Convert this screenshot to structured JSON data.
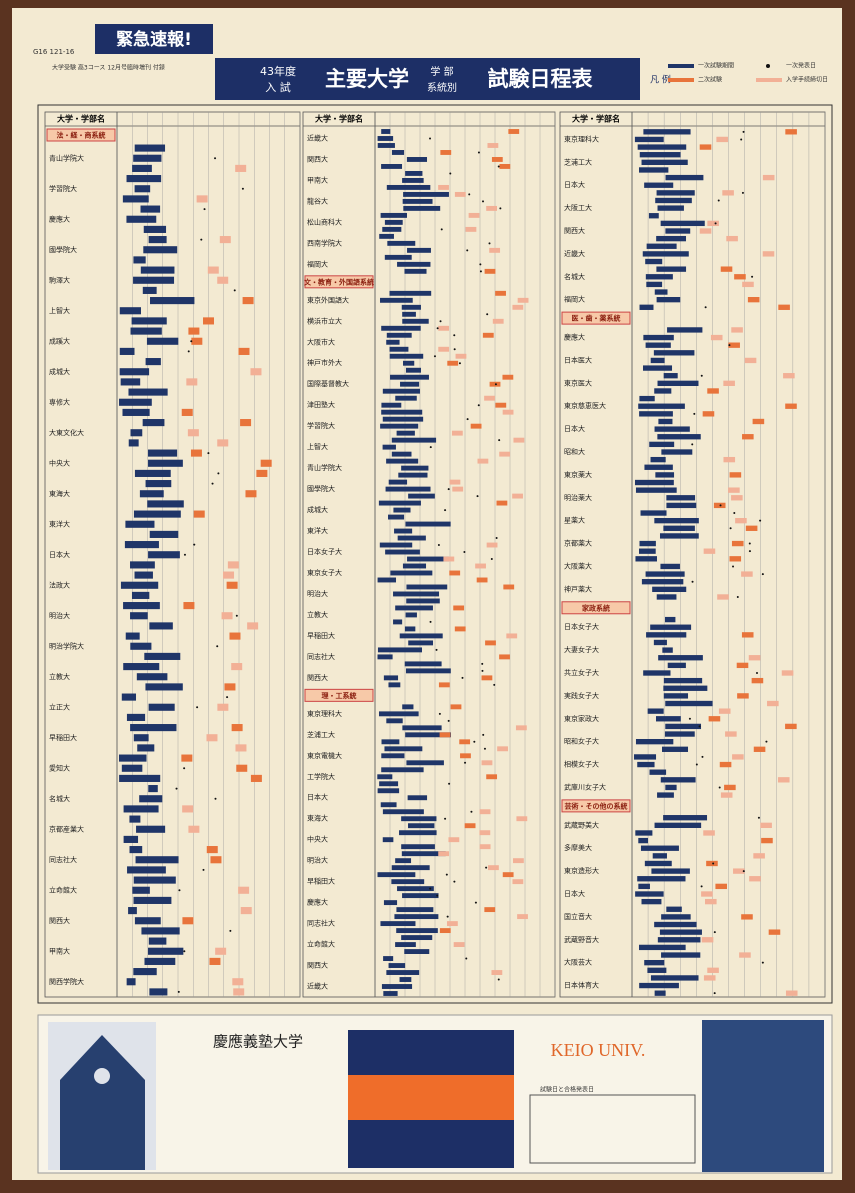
{
  "header": {
    "code": "G16 121-16",
    "banner": "緊急速報!",
    "note": "大学受験 高3コース 12月号臨時増刊 付録",
    "title_year": "43年度",
    "title_exam": "入 試",
    "title_main": "主要大学",
    "title_sub1": "学 部",
    "title_sub2": "系統別",
    "title_end": "試験日程表"
  },
  "legend": {
    "title": "凡 例",
    "items": [
      "一次試験期間",
      "一次発表日",
      "二次試験",
      "入学手続締切日"
    ]
  },
  "columns": [
    {
      "header": "大学・学部名",
      "sections": [
        {
          "title": "法・経・商系統",
          "rows": [
            "青山学院大",
            "学習院大",
            "慶應大",
            "國學院大",
            "駒澤大",
            "上智大",
            "成蹊大",
            "成城大",
            "専修大",
            "大東文化大",
            "中央大",
            "東海大",
            "東洋大",
            "日本大",
            "法政大",
            "明治大",
            "明治学院大",
            "立教大",
            "立正大",
            "早稲田大",
            "愛知大",
            "名城大",
            "京都産業大",
            "同志社大",
            "立命館大",
            "関西大",
            "甲南大",
            "関西学院大"
          ]
        }
      ]
    },
    {
      "header": "大学・学部名",
      "sections": [
        {
          "rows": [
            "近畿大",
            "関西大",
            "甲南大",
            "龍谷大",
            "松山商科大",
            "西南学院大",
            "福岡大"
          ]
        },
        {
          "title": "文・教育・外国語系統",
          "rows": [
            "東京外国語大",
            "横浜市立大",
            "大阪市大",
            "神戸市外大",
            "国際基督教大",
            "津田塾大",
            "学習院大",
            "上智大",
            "青山学院大",
            "國學院大",
            "成城大",
            "東洋大",
            "日本女子大",
            "東京女子大",
            "明治大",
            "立教大",
            "早稲田大",
            "同志社大",
            "関西大"
          ]
        },
        {
          "title": "理・工系統",
          "rows": [
            "東京理科大",
            "芝浦工大",
            "東京電機大",
            "工学院大",
            "日本大",
            "東海大",
            "中央大",
            "明治大",
            "早稲田大",
            "慶應大",
            "同志社大",
            "立命館大",
            "関西大",
            "近畿大"
          ]
        }
      ]
    },
    {
      "header": "大学・学部名",
      "sections": [
        {
          "rows": [
            "東京理科大",
            "芝浦工大",
            "日本大",
            "大阪工大",
            "関西大",
            "近畿大",
            "名城大",
            "福岡大"
          ]
        },
        {
          "title": "医・歯・薬系統",
          "rows": [
            "慶應大",
            "日本医大",
            "東京医大",
            "東京慈恵医大",
            "日本大",
            "昭和大",
            "東京薬大",
            "明治薬大",
            "星薬大",
            "京都薬大",
            "大阪薬大",
            "神戸薬大"
          ]
        },
        {
          "title": "家政系統",
          "rows": [
            "日本女子大",
            "大妻女子大",
            "共立女子大",
            "実践女子大",
            "東京家政大",
            "昭和女子大",
            "相模女子大",
            "武庫川女子大"
          ]
        },
        {
          "title": "芸術・その他の系統",
          "rows": [
            "武蔵野美大",
            "多摩美大",
            "東京造形大",
            "日本大",
            "国立音大",
            "武蔵野音大",
            "大阪芸大",
            "日本体育大"
          ]
        }
      ]
    }
  ],
  "ad": {
    "name": "慶應義塾大学",
    "latin": "KEIO UNIV.",
    "table_title": "試験日と合格発表日"
  }
}
